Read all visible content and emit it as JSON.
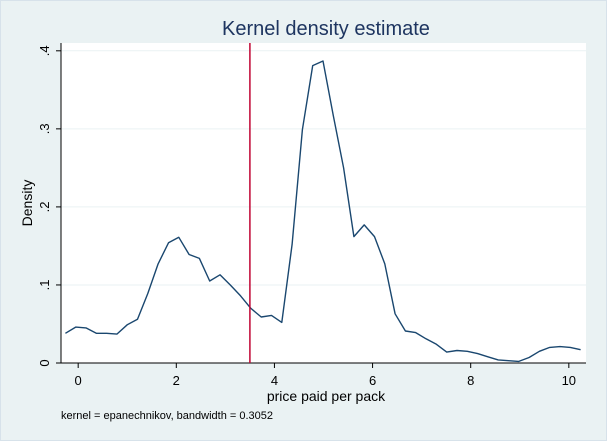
{
  "chart_data": {
    "type": "line",
    "title": "Kernel density estimate",
    "xlabel": "price paid per pack",
    "ylabel": "Density",
    "note": "kernel = epanechnikov, bandwidth = 0.3052",
    "xlim": [
      -0.35,
      10.35
    ],
    "ylim": [
      0,
      0.41
    ],
    "x_ticks": [
      0,
      2,
      4,
      6,
      8,
      10
    ],
    "x_tick_labels": [
      "0",
      "2",
      "4",
      "6",
      "8",
      "10"
    ],
    "y_ticks": [
      0,
      0.1,
      0.2,
      0.3,
      0.4
    ],
    "y_tick_labels": [
      "0",
      ".1",
      ".2",
      ".3",
      ".4"
    ],
    "grid": "horizontal",
    "reference_line_x": 3.5,
    "colors": {
      "background": "#eaf2f3",
      "plot_area": "#ffffff",
      "series": "#1a476f",
      "reference_line": "#c10534",
      "title": "#1e3560"
    },
    "series": [
      {
        "x": [
          -0.26,
          -0.05,
          0.16,
          0.37,
          0.58,
          0.79,
          1.0,
          1.21,
          1.42,
          1.63,
          1.84,
          2.05,
          2.26,
          2.47,
          2.68,
          2.89,
          3.1,
          3.31,
          3.52,
          3.73,
          3.94,
          4.15,
          4.36,
          4.57,
          4.78,
          4.99,
          5.2,
          5.41,
          5.62,
          5.83,
          6.04,
          6.25,
          6.46,
          6.67,
          6.88,
          7.09,
          7.3,
          7.51,
          7.72,
          7.93,
          8.14,
          8.35,
          8.56,
          8.77,
          8.98,
          9.19,
          9.4,
          9.61,
          9.82,
          10.03,
          10.24
        ],
        "y": [
          0.038,
          0.046,
          0.045,
          0.038,
          0.038,
          0.037,
          0.049,
          0.056,
          0.089,
          0.127,
          0.154,
          0.161,
          0.139,
          0.134,
          0.105,
          0.113,
          0.1,
          0.086,
          0.07,
          0.059,
          0.061,
          0.052,
          0.152,
          0.299,
          0.381,
          0.387,
          0.317,
          0.25,
          0.162,
          0.177,
          0.162,
          0.127,
          0.063,
          0.041,
          0.039,
          0.031,
          0.024,
          0.014,
          0.016,
          0.015,
          0.012,
          0.008,
          0.004,
          0.003,
          0.002,
          0.007,
          0.015,
          0.02,
          0.021,
          0.02,
          0.017
        ]
      }
    ]
  }
}
